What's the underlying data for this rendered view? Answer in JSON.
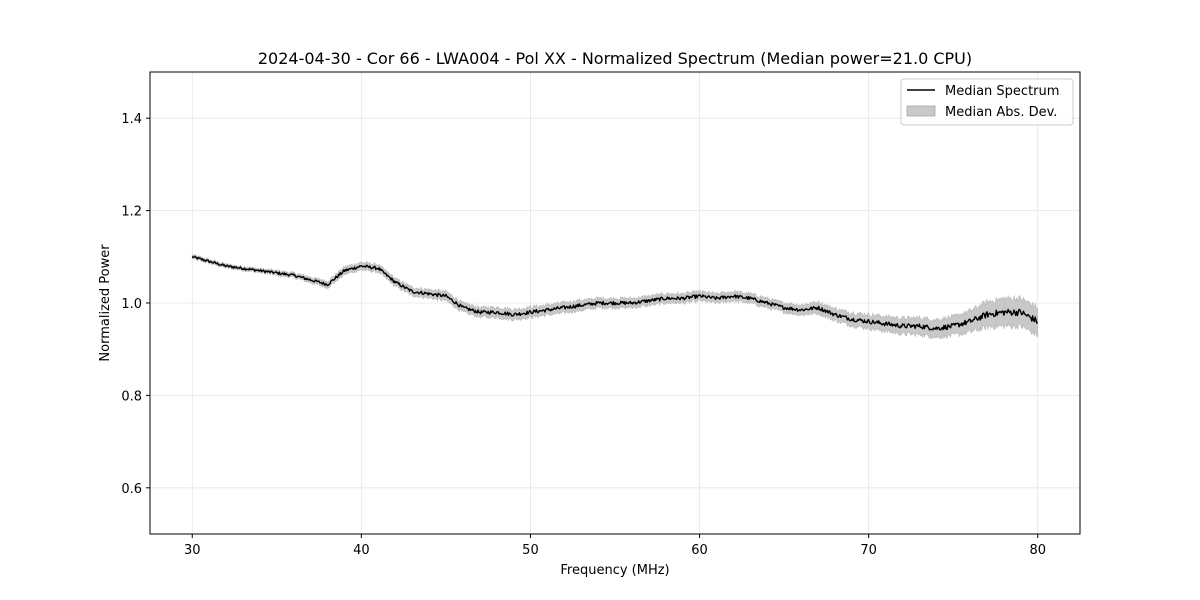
{
  "chart_data": {
    "type": "line",
    "title": "2024-04-30 - Cor 66 - LWA004 - Pol XX - Normalized Spectrum (Median power=21.0 CPU)",
    "xlabel": "Frequency (MHz)",
    "ylabel": "Normalized Power",
    "xlim": [
      27.5,
      82.5
    ],
    "ylim": [
      0.5,
      1.5
    ],
    "xticks": [
      30,
      40,
      50,
      60,
      70,
      80
    ],
    "yticks": [
      0.6,
      0.8,
      1.0,
      1.2,
      1.4
    ],
    "grid": true,
    "legend_location": "top-right",
    "series": [
      {
        "name": "Median Spectrum",
        "kind": "line",
        "color": "#000000",
        "x": [
          30,
          31,
          32,
          33,
          34,
          35,
          36,
          37,
          38,
          39,
          40,
          41,
          42,
          43,
          44,
          45,
          46,
          47,
          48,
          49,
          50,
          51,
          52,
          53,
          54,
          55,
          56,
          57,
          58,
          59,
          60,
          61,
          62,
          63,
          64,
          65,
          66,
          67,
          68,
          69,
          70,
          71,
          72,
          73,
          74,
          75,
          76,
          77,
          78,
          79,
          80
        ],
        "values": [
          1.1,
          1.09,
          1.08,
          1.075,
          1.07,
          1.065,
          1.06,
          1.05,
          1.04,
          1.07,
          1.08,
          1.075,
          1.045,
          1.025,
          1.02,
          1.015,
          0.99,
          0.98,
          0.98,
          0.975,
          0.98,
          0.985,
          0.99,
          0.995,
          1.0,
          1.0,
          1.0,
          1.005,
          1.01,
          1.01,
          1.015,
          1.01,
          1.015,
          1.01,
          1.0,
          0.99,
          0.985,
          0.99,
          0.975,
          0.965,
          0.96,
          0.955,
          0.95,
          0.95,
          0.945,
          0.95,
          0.96,
          0.975,
          0.98,
          0.98,
          0.96
        ]
      },
      {
        "name": "Median Abs. Dev.",
        "kind": "band",
        "color": "#c8c8c8",
        "x": [
          30,
          31,
          32,
          33,
          34,
          35,
          36,
          37,
          38,
          39,
          40,
          41,
          42,
          43,
          44,
          45,
          46,
          47,
          48,
          49,
          50,
          51,
          52,
          53,
          54,
          55,
          56,
          57,
          58,
          59,
          60,
          61,
          62,
          63,
          64,
          65,
          66,
          67,
          68,
          69,
          70,
          71,
          72,
          73,
          74,
          75,
          76,
          77,
          78,
          79,
          80
        ],
        "mad": [
          0.004,
          0.004,
          0.004,
          0.004,
          0.004,
          0.005,
          0.005,
          0.006,
          0.007,
          0.008,
          0.008,
          0.008,
          0.008,
          0.009,
          0.009,
          0.01,
          0.01,
          0.01,
          0.011,
          0.011,
          0.011,
          0.011,
          0.011,
          0.011,
          0.01,
          0.01,
          0.01,
          0.01,
          0.01,
          0.01,
          0.01,
          0.01,
          0.01,
          0.01,
          0.01,
          0.01,
          0.011,
          0.012,
          0.013,
          0.014,
          0.015,
          0.016,
          0.017,
          0.018,
          0.019,
          0.02,
          0.023,
          0.027,
          0.03,
          0.03,
          0.03
        ]
      }
    ],
    "legend": [
      "Median Spectrum",
      "Median Abs. Dev."
    ]
  }
}
